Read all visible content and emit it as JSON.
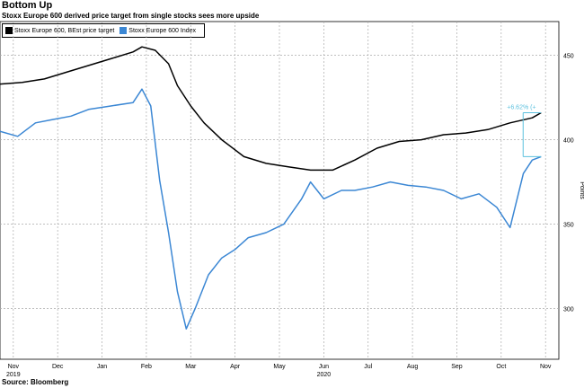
{
  "title": "Bottom Up",
  "subtitle": "Stoxx Europe 600 derived price target from single stocks sees more upside",
  "source": "Source: Bloomberg",
  "chart_data": {
    "type": "line",
    "ylabel": "Points",
    "ylim": [
      270,
      470
    ],
    "yticks": [
      300,
      350,
      400,
      450
    ],
    "grid": true,
    "legend_position": "top-left",
    "annotation": {
      "text": "+6.62% (+",
      "color": "#5bc0de"
    },
    "xticks": [
      {
        "label": "Nov",
        "year": "2019",
        "x": 0.3
      },
      {
        "label": "Dec",
        "x": 1.3
      },
      {
        "label": "Jan",
        "x": 2.3
      },
      {
        "label": "Feb",
        "x": 3.3
      },
      {
        "label": "Mar",
        "x": 4.3
      },
      {
        "label": "Apr",
        "x": 5.3
      },
      {
        "label": "May",
        "x": 6.3
      },
      {
        "label": "Jun",
        "year": "2020",
        "x": 7.3
      },
      {
        "label": "Jul",
        "x": 8.3
      },
      {
        "label": "Aug",
        "x": 9.3
      },
      {
        "label": "Sep",
        "x": 10.3
      },
      {
        "label": "Oct",
        "x": 11.3
      },
      {
        "label": "Nov",
        "x": 12.3
      }
    ],
    "series": [
      {
        "name": "Stoxx Europe 600, BEst price target",
        "color": "#000000",
        "points": [
          [
            0,
            433
          ],
          [
            0.5,
            434
          ],
          [
            1,
            436
          ],
          [
            1.5,
            440
          ],
          [
            2,
            444
          ],
          [
            2.5,
            448
          ],
          [
            3,
            452
          ],
          [
            3.2,
            455
          ],
          [
            3.5,
            453
          ],
          [
            3.8,
            445
          ],
          [
            4,
            432
          ],
          [
            4.3,
            420
          ],
          [
            4.6,
            410
          ],
          [
            5,
            400
          ],
          [
            5.5,
            390
          ],
          [
            6,
            386
          ],
          [
            6.5,
            384
          ],
          [
            7,
            382
          ],
          [
            7.5,
            382
          ],
          [
            8,
            388
          ],
          [
            8.5,
            395
          ],
          [
            9,
            399
          ],
          [
            9.5,
            400
          ],
          [
            10,
            403
          ],
          [
            10.5,
            404
          ],
          [
            11,
            406
          ],
          [
            11.5,
            410
          ],
          [
            12,
            413
          ],
          [
            12.2,
            416
          ]
        ]
      },
      {
        "name": "Stoxx Europe 600 Index",
        "color": "#3b87d4",
        "points": [
          [
            0,
            405
          ],
          [
            0.4,
            402
          ],
          [
            0.8,
            410
          ],
          [
            1.2,
            412
          ],
          [
            1.6,
            414
          ],
          [
            2,
            418
          ],
          [
            2.5,
            420
          ],
          [
            3,
            422
          ],
          [
            3.2,
            430
          ],
          [
            3.4,
            420
          ],
          [
            3.6,
            376
          ],
          [
            3.8,
            345
          ],
          [
            4.0,
            310
          ],
          [
            4.2,
            288
          ],
          [
            4.4,
            300
          ],
          [
            4.7,
            320
          ],
          [
            5.0,
            330
          ],
          [
            5.3,
            335
          ],
          [
            5.6,
            342
          ],
          [
            6,
            345
          ],
          [
            6.4,
            350
          ],
          [
            6.8,
            365
          ],
          [
            7,
            375
          ],
          [
            7.3,
            365
          ],
          [
            7.7,
            370
          ],
          [
            8,
            370
          ],
          [
            8.4,
            372
          ],
          [
            8.8,
            375
          ],
          [
            9.2,
            373
          ],
          [
            9.6,
            372
          ],
          [
            10,
            370
          ],
          [
            10.4,
            365
          ],
          [
            10.8,
            368
          ],
          [
            11.2,
            360
          ],
          [
            11.5,
            348
          ],
          [
            11.8,
            380
          ],
          [
            12,
            388
          ],
          [
            12.2,
            390
          ]
        ]
      }
    ]
  }
}
